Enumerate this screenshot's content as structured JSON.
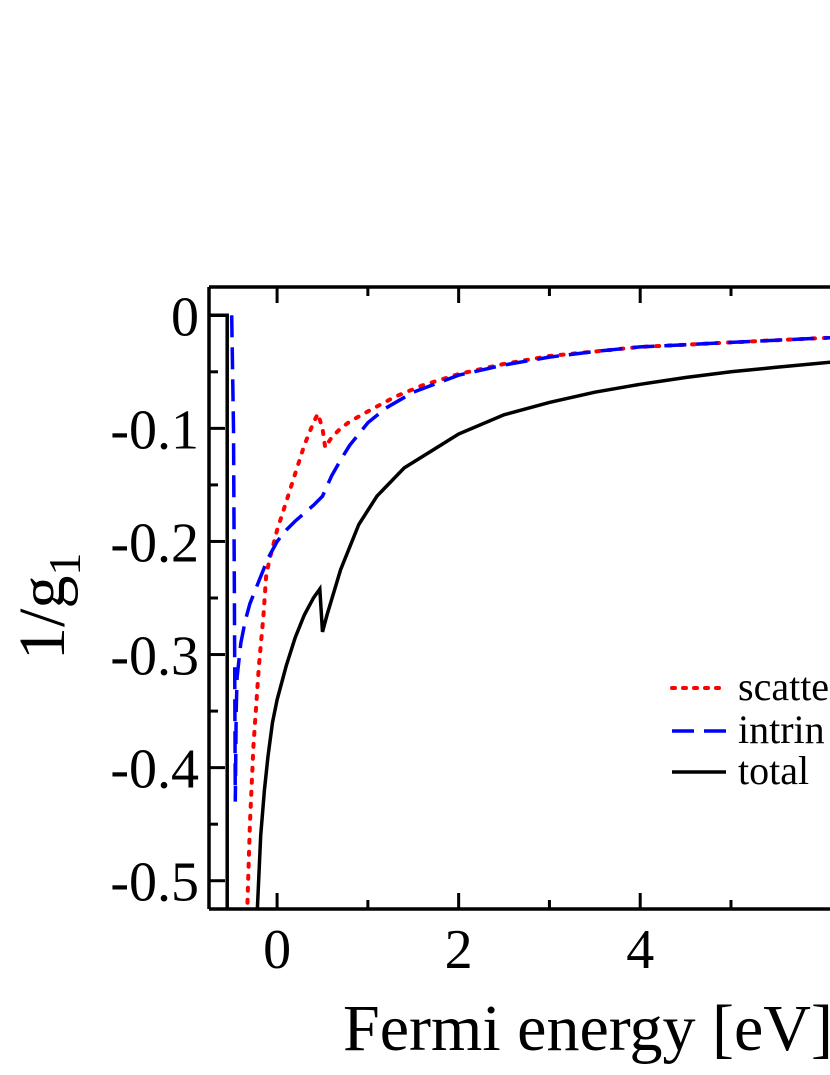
{
  "chart_data": {
    "type": "line",
    "title": "",
    "xlabel": "Fermi energy [eV]",
    "ylabel": "1/g",
    "ylabel_subscript": "1",
    "xlim": [
      -0.75,
      6.3
    ],
    "ylim": [
      -0.525,
      0.025
    ],
    "x_ticks": [
      0,
      2,
      4
    ],
    "x_tick_labels": [
      "0",
      "2",
      "4"
    ],
    "y_ticks": [
      0,
      -0.1,
      -0.2,
      -0.3,
      -0.4,
      -0.5
    ],
    "y_tick_labels": [
      "0",
      "-0.1",
      "-0.2",
      "-0.3",
      "-0.4",
      "-0.5"
    ],
    "grid": false,
    "legend_placement": "right",
    "series": [
      {
        "name": "scatte",
        "color": "#ff0000",
        "style": "dotted",
        "points": [
          [
            -0.33,
            -0.53
          ],
          [
            -0.3,
            -0.45
          ],
          [
            -0.26,
            -0.38
          ],
          [
            -0.2,
            -0.31
          ],
          [
            -0.15,
            -0.265
          ],
          [
            -0.12,
            -0.23
          ],
          [
            -0.08,
            -0.215
          ],
          [
            0.0,
            -0.19
          ],
          [
            0.1,
            -0.165
          ],
          [
            0.2,
            -0.14
          ],
          [
            0.3,
            -0.115
          ],
          [
            0.4,
            -0.095
          ],
          [
            0.45,
            -0.087
          ],
          [
            0.5,
            -0.1
          ],
          [
            0.53,
            -0.117
          ],
          [
            0.6,
            -0.108
          ],
          [
            0.7,
            -0.1
          ],
          [
            0.8,
            -0.094
          ],
          [
            1.0,
            -0.085
          ],
          [
            1.3,
            -0.072
          ],
          [
            1.6,
            -0.062
          ],
          [
            2.0,
            -0.052
          ],
          [
            2.5,
            -0.043
          ],
          [
            3.0,
            -0.036
          ],
          [
            3.5,
            -0.032
          ],
          [
            4.0,
            -0.028
          ],
          [
            4.5,
            -0.026
          ],
          [
            5.0,
            -0.024
          ],
          [
            5.5,
            -0.022
          ],
          [
            6.3,
            -0.019
          ]
        ]
      },
      {
        "name": "intrin",
        "color": "#0000ff",
        "style": "dashed",
        "points": [
          [
            -0.5,
            0.0
          ],
          [
            -0.48,
            -0.1
          ],
          [
            -0.47,
            -0.25
          ],
          [
            -0.46,
            -0.43
          ],
          [
            -0.45,
            -0.35
          ],
          [
            -0.44,
            -0.32
          ],
          [
            -0.4,
            -0.29
          ],
          [
            -0.35,
            -0.27
          ],
          [
            -0.3,
            -0.255
          ],
          [
            -0.2,
            -0.235
          ],
          [
            -0.1,
            -0.215
          ],
          [
            0.0,
            -0.2
          ],
          [
            0.1,
            -0.19
          ],
          [
            0.2,
            -0.182
          ],
          [
            0.3,
            -0.175
          ],
          [
            0.4,
            -0.168
          ],
          [
            0.5,
            -0.16
          ],
          [
            0.6,
            -0.142
          ],
          [
            0.7,
            -0.128
          ],
          [
            0.8,
            -0.115
          ],
          [
            0.9,
            -0.105
          ],
          [
            1.0,
            -0.095
          ],
          [
            1.2,
            -0.082
          ],
          [
            1.5,
            -0.068
          ],
          [
            2.0,
            -0.053
          ],
          [
            2.5,
            -0.044
          ],
          [
            3.0,
            -0.037
          ],
          [
            3.5,
            -0.032
          ],
          [
            4.0,
            -0.028
          ],
          [
            4.5,
            -0.026
          ],
          [
            5.0,
            -0.024
          ],
          [
            5.5,
            -0.022
          ],
          [
            6.3,
            -0.019
          ]
        ]
      },
      {
        "name": "total",
        "color": "#000000",
        "style": "solid",
        "points": [
          [
            -0.22,
            -0.53
          ],
          [
            -0.18,
            -0.46
          ],
          [
            -0.14,
            -0.42
          ],
          [
            -0.1,
            -0.39
          ],
          [
            -0.05,
            -0.36
          ],
          [
            0.0,
            -0.34
          ],
          [
            0.1,
            -0.31
          ],
          [
            0.2,
            -0.285
          ],
          [
            0.3,
            -0.265
          ],
          [
            0.4,
            -0.25
          ],
          [
            0.47,
            -0.242
          ],
          [
            0.5,
            -0.28
          ],
          [
            0.55,
            -0.265
          ],
          [
            0.7,
            -0.225
          ],
          [
            0.9,
            -0.185
          ],
          [
            1.1,
            -0.16
          ],
          [
            1.4,
            -0.135
          ],
          [
            1.7,
            -0.12
          ],
          [
            2.0,
            -0.105
          ],
          [
            2.5,
            -0.088
          ],
          [
            3.0,
            -0.077
          ],
          [
            3.5,
            -0.068
          ],
          [
            4.0,
            -0.061
          ],
          [
            4.5,
            -0.055
          ],
          [
            5.0,
            -0.05
          ],
          [
            5.5,
            -0.046
          ],
          [
            6.3,
            -0.04
          ]
        ]
      },
      {
        "name": "",
        "color": "#000000",
        "style": "solid",
        "points": [
          [
            -0.75,
            0.0
          ],
          [
            -0.55,
            0.0
          ],
          [
            -0.55,
            -0.53
          ]
        ]
      }
    ]
  }
}
